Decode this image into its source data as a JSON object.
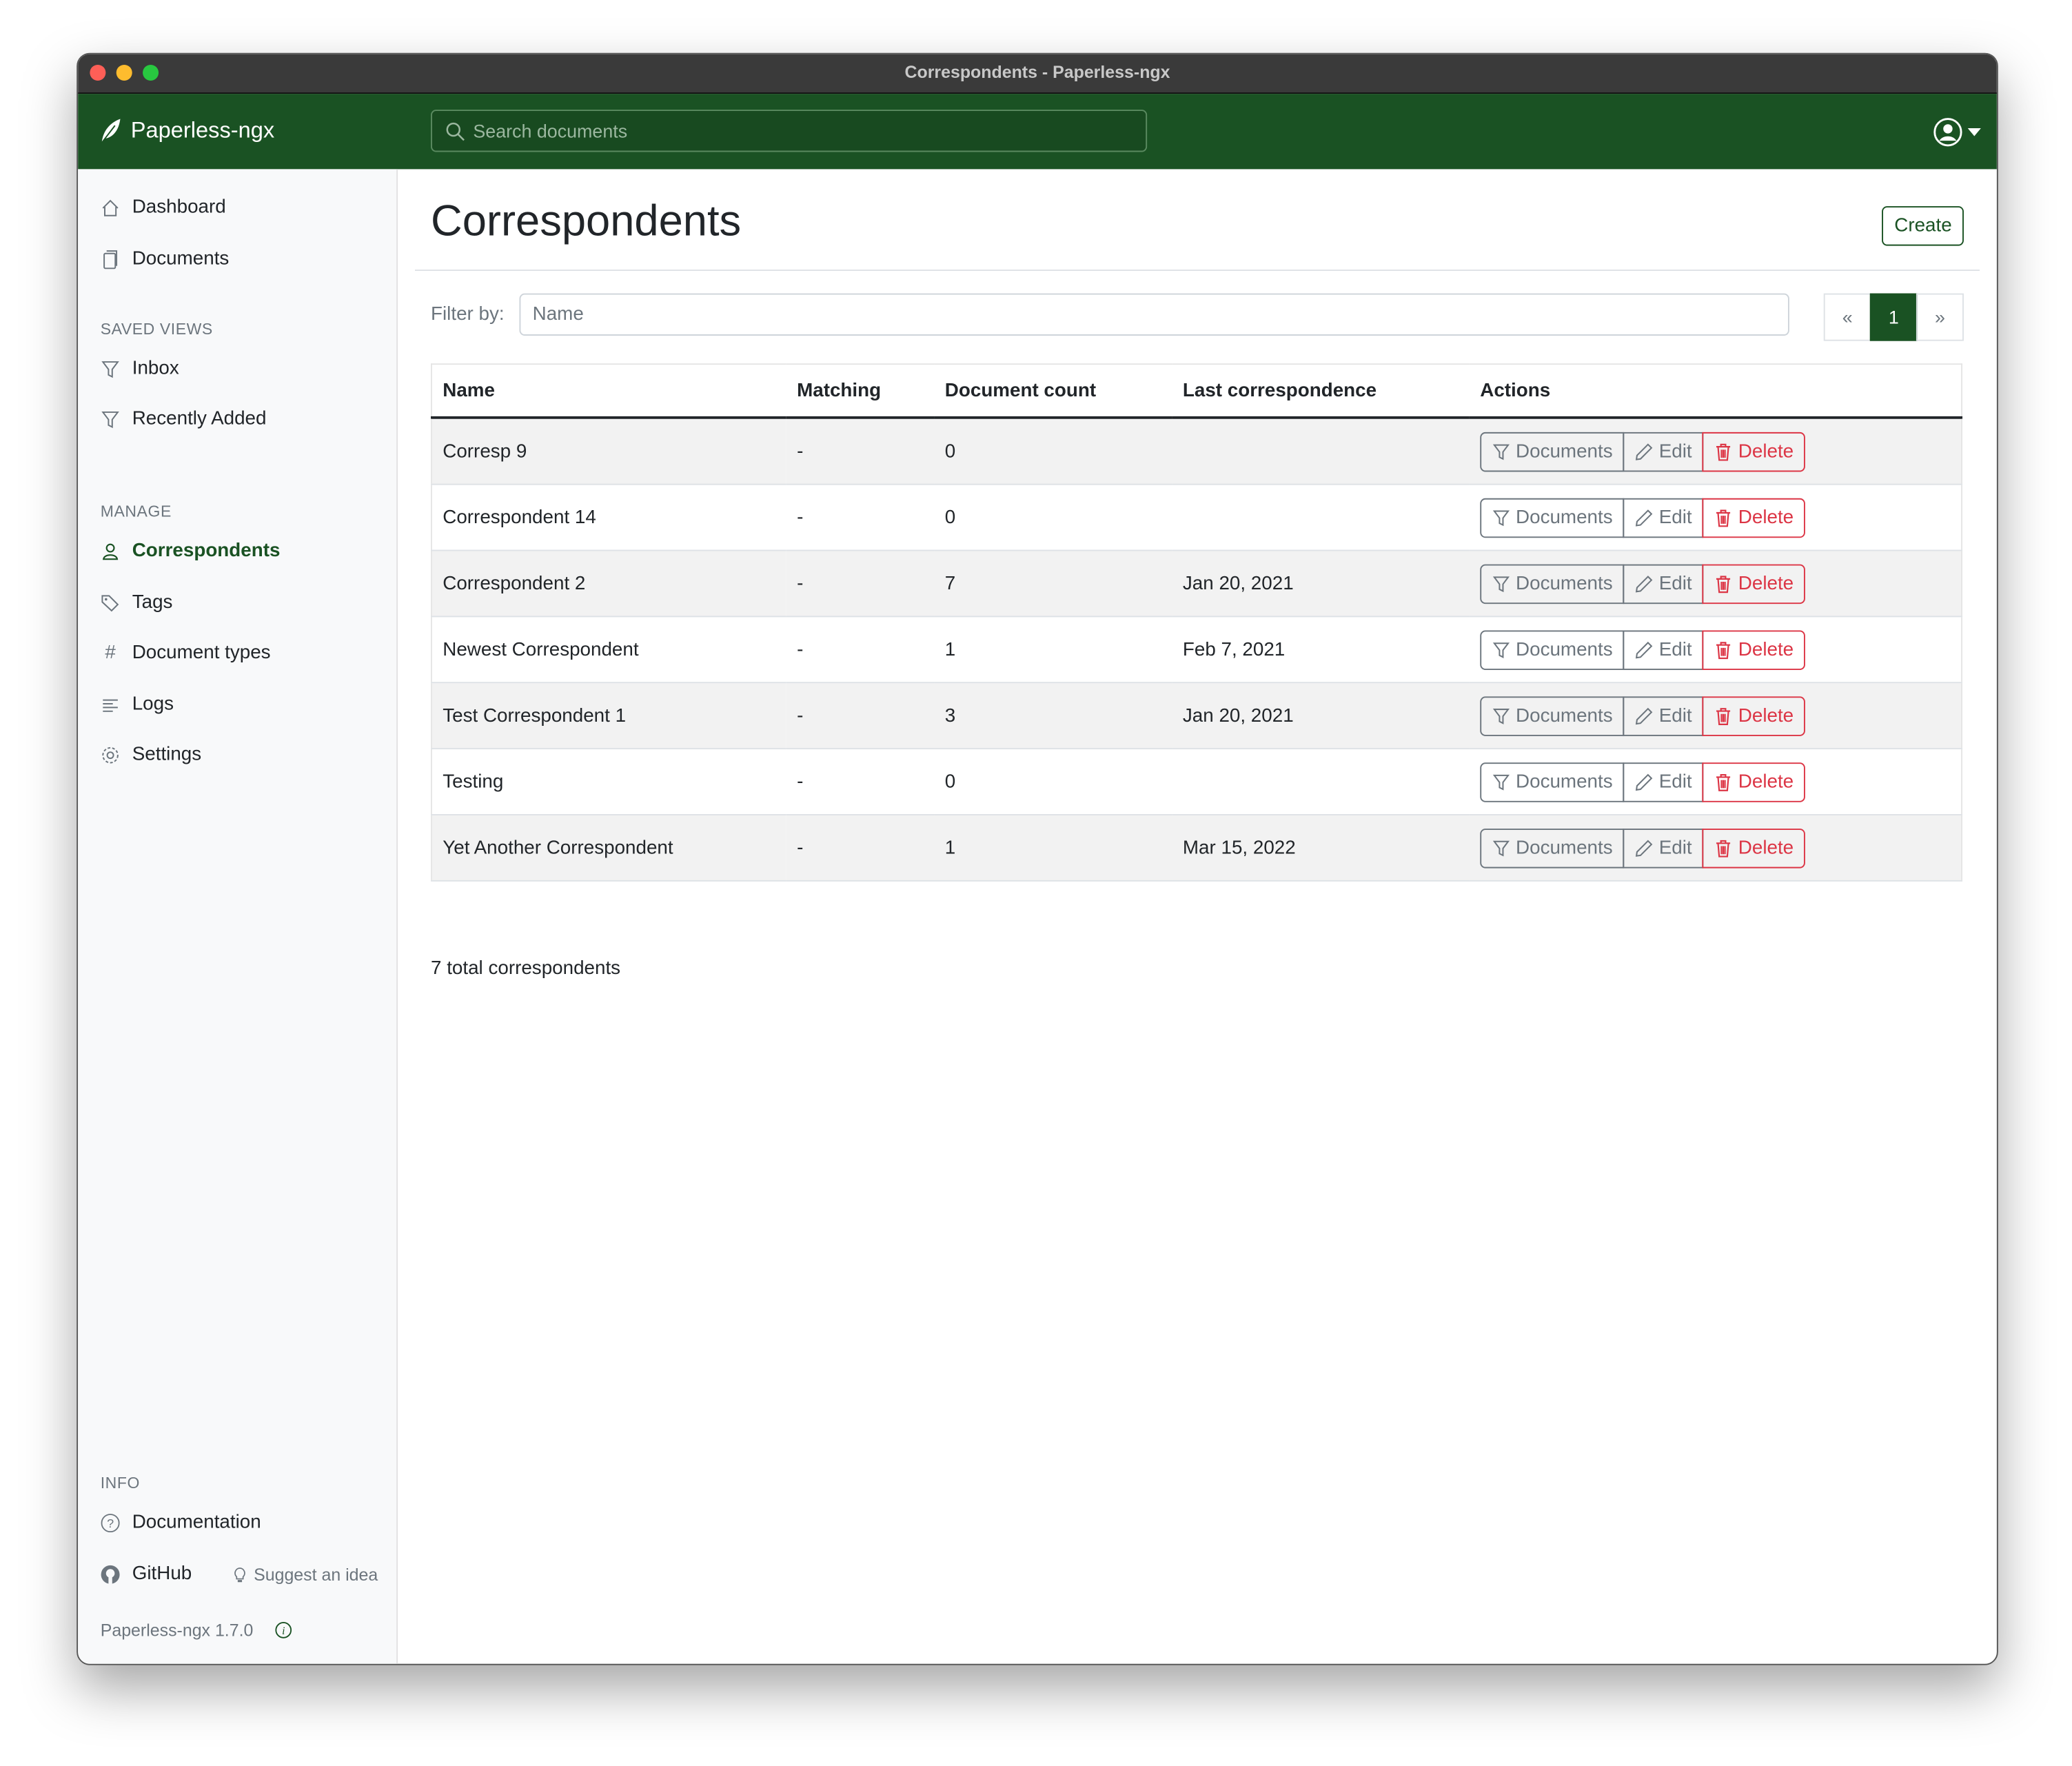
{
  "window": {
    "title": "Correspondents - Paperless-ngx"
  },
  "navbar": {
    "brand": "Paperless-ngx",
    "search_placeholder": "Search documents"
  },
  "sidebar": {
    "main": [
      {
        "label": "Dashboard",
        "icon": "house-icon"
      },
      {
        "label": "Documents",
        "icon": "files-icon"
      }
    ],
    "saved_views_heading": "SAVED VIEWS",
    "saved_views": [
      {
        "label": "Inbox",
        "icon": "funnel-icon"
      },
      {
        "label": "Recently Added",
        "icon": "funnel-icon"
      }
    ],
    "manage_heading": "MANAGE",
    "manage": [
      {
        "label": "Correspondents",
        "icon": "person-icon",
        "active": true
      },
      {
        "label": "Tags",
        "icon": "tags-icon"
      },
      {
        "label": "Document types",
        "icon": "hash-icon"
      },
      {
        "label": "Logs",
        "icon": "text-left-icon"
      },
      {
        "label": "Settings",
        "icon": "gear-icon"
      }
    ],
    "info_heading": "INFO",
    "documentation": "Documentation",
    "github": "GitHub",
    "suggest": "Suggest an idea",
    "version": "Paperless-ngx 1.7.0"
  },
  "main": {
    "title": "Correspondents",
    "create_label": "Create",
    "filter_label": "Filter by:",
    "filter_placeholder": "Name",
    "pager": {
      "prev": "«",
      "page": "1",
      "next": "»"
    },
    "columns": [
      "Name",
      "Matching",
      "Document count",
      "Last correspondence",
      "Actions"
    ],
    "actions": {
      "documents": "Documents",
      "edit": "Edit",
      "delete": "Delete"
    },
    "rows": [
      {
        "name": "Corresp 9",
        "matching": "-",
        "count": "0",
        "last": ""
      },
      {
        "name": "Correspondent 14",
        "matching": "-",
        "count": "0",
        "last": ""
      },
      {
        "name": "Correspondent 2",
        "matching": "-",
        "count": "7",
        "last": "Jan 20, 2021"
      },
      {
        "name": "Newest Correspondent",
        "matching": "-",
        "count": "1",
        "last": "Feb 7, 2021"
      },
      {
        "name": "Test Correspondent 1",
        "matching": "-",
        "count": "3",
        "last": "Jan 20, 2021"
      },
      {
        "name": "Testing",
        "matching": "-",
        "count": "0",
        "last": ""
      },
      {
        "name": "Yet Another Correspondent",
        "matching": "-",
        "count": "1",
        "last": "Mar 15, 2022"
      }
    ],
    "total": "7 total correspondents"
  },
  "colors": {
    "brand": "#1a5223",
    "danger": "#dc3545",
    "secondary": "#6c757d"
  }
}
